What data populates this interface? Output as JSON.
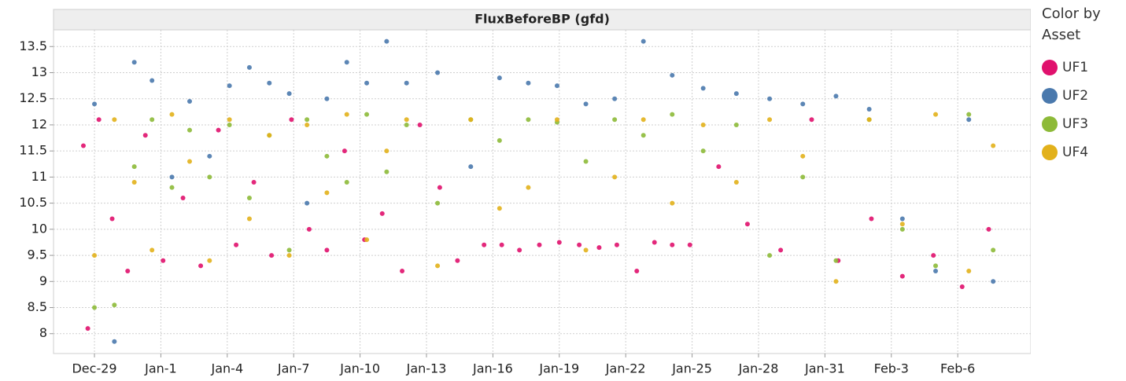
{
  "chart_data": {
    "type": "scatter",
    "title": "FluxBeforeBP (gfd)",
    "legend_title": "Color by Asset",
    "legend_position": "right",
    "grid": true,
    "xlim": [
      -1.85,
      42.3
    ],
    "ylim": [
      7.62,
      13.82
    ],
    "xticks": [
      {
        "value": 0,
        "label": "Dec-29"
      },
      {
        "value": 3,
        "label": "Jan-1"
      },
      {
        "value": 6,
        "label": "Jan-4"
      },
      {
        "value": 9,
        "label": "Jan-7"
      },
      {
        "value": 12,
        "label": "Jan-10"
      },
      {
        "value": 15,
        "label": "Jan-13"
      },
      {
        "value": 18,
        "label": "Jan-16"
      },
      {
        "value": 21,
        "label": "Jan-19"
      },
      {
        "value": 24,
        "label": "Jan-22"
      },
      {
        "value": 27,
        "label": "Jan-25"
      },
      {
        "value": 30,
        "label": "Jan-28"
      },
      {
        "value": 33,
        "label": "Jan-31"
      },
      {
        "value": 36,
        "label": "Feb-3"
      },
      {
        "value": 39,
        "label": "Feb-6"
      }
    ],
    "yticks": [
      8,
      8.5,
      9,
      9.5,
      10,
      10.5,
      11,
      11.5,
      12,
      12.5,
      13,
      13.5
    ],
    "series": [
      {
        "name": "UF1",
        "color": "#e0116d",
        "x": [
          -0.5,
          -0.3,
          0.2,
          0.8,
          1.5,
          2.3,
          3.1,
          4.0,
          4.8,
          5.6,
          6.4,
          7.2,
          8.0,
          8.9,
          9.7,
          10.5,
          11.3,
          12.2,
          13.0,
          13.9,
          14.7,
          15.6,
          16.4,
          17.6,
          18.4,
          19.2,
          20.1,
          21.0,
          21.9,
          22.8,
          23.6,
          24.5,
          25.3,
          26.1,
          26.9,
          28.2,
          29.5,
          31.0,
          32.4,
          33.6,
          35.1,
          36.5,
          37.9,
          39.2,
          40.4
        ],
        "values": [
          11.6,
          8.1,
          12.1,
          10.2,
          9.2,
          11.8,
          9.4,
          10.6,
          9.3,
          11.9,
          9.7,
          10.9,
          9.5,
          12.1,
          10.0,
          9.6,
          11.5,
          9.8,
          10.3,
          9.2,
          12.0,
          10.8,
          9.4,
          9.7,
          9.7,
          9.6,
          9.7,
          9.75,
          9.7,
          9.65,
          9.7,
          9.2,
          9.75,
          9.7,
          9.7,
          11.2,
          10.1,
          9.6,
          12.1,
          9.4,
          10.2,
          9.1,
          9.5,
          8.9,
          10.0
        ]
      },
      {
        "name": "UF2",
        "color": "#4a79ad",
        "x": [
          0.0,
          0.9,
          1.8,
          2.6,
          3.5,
          4.3,
          5.2,
          6.1,
          7.0,
          7.9,
          8.8,
          9.6,
          10.5,
          11.4,
          12.3,
          13.2,
          14.1,
          15.5,
          17.0,
          18.3,
          19.6,
          20.9,
          22.2,
          23.5,
          24.8,
          26.1,
          27.5,
          29.0,
          30.5,
          32.0,
          33.5,
          35.0,
          36.5,
          38.0,
          39.5,
          40.6
        ],
        "values": [
          12.4,
          7.85,
          13.2,
          12.85,
          11.0,
          12.45,
          11.4,
          12.75,
          13.1,
          12.8,
          12.6,
          10.5,
          12.5,
          13.2,
          12.8,
          13.6,
          12.8,
          13.0,
          11.2,
          12.9,
          12.8,
          12.75,
          12.4,
          12.5,
          13.6,
          12.95,
          12.7,
          12.6,
          12.5,
          12.4,
          12.55,
          12.3,
          10.2,
          9.2,
          12.1,
          9.0
        ]
      },
      {
        "name": "UF3",
        "color": "#8dba38",
        "x": [
          0.0,
          0.9,
          1.8,
          2.6,
          3.5,
          4.3,
          5.2,
          6.1,
          7.0,
          7.9,
          8.8,
          9.6,
          10.5,
          11.4,
          12.3,
          13.2,
          14.1,
          15.5,
          17.0,
          18.3,
          19.6,
          20.9,
          22.2,
          23.5,
          24.8,
          26.1,
          27.5,
          29.0,
          30.5,
          32.0,
          33.5,
          35.0,
          36.5,
          38.0,
          39.5,
          40.6
        ],
        "values": [
          8.5,
          8.55,
          11.2,
          12.1,
          10.8,
          11.9,
          11.0,
          12.0,
          10.6,
          11.8,
          9.6,
          12.1,
          11.4,
          10.9,
          12.2,
          11.1,
          12.0,
          10.5,
          12.1,
          11.7,
          12.1,
          12.05,
          11.3,
          12.1,
          11.8,
          12.2,
          11.5,
          12.0,
          9.5,
          11.0,
          9.4,
          12.1,
          10.0,
          9.3,
          12.2,
          9.6
        ]
      },
      {
        "name": "UF4",
        "color": "#e2b11b",
        "x": [
          0.0,
          0.9,
          1.8,
          2.6,
          3.5,
          4.3,
          5.2,
          6.1,
          7.0,
          7.9,
          8.8,
          9.6,
          10.5,
          11.4,
          12.3,
          13.2,
          14.1,
          15.5,
          17.0,
          18.3,
          19.6,
          20.9,
          22.2,
          23.5,
          24.8,
          26.1,
          27.5,
          29.0,
          30.5,
          32.0,
          33.5,
          35.0,
          36.5,
          38.0,
          39.5,
          40.6
        ],
        "values": [
          9.5,
          12.1,
          10.9,
          9.6,
          12.2,
          11.3,
          9.4,
          12.1,
          10.2,
          11.8,
          9.5,
          12.0,
          10.7,
          12.2,
          9.8,
          11.5,
          12.1,
          9.3,
          12.1,
          10.4,
          10.8,
          12.1,
          9.6,
          11.0,
          12.1,
          10.5,
          12.0,
          10.9,
          12.1,
          11.4,
          9.0,
          12.1,
          10.1,
          12.2,
          9.2,
          11.6
        ]
      }
    ]
  }
}
